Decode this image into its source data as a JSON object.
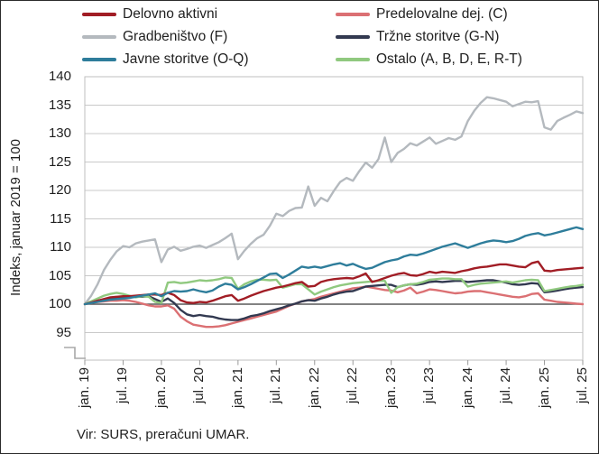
{
  "figure": {
    "source_note": "Vir: SURS, preračuni UMAR."
  },
  "chart_data": {
    "type": "line",
    "title": "",
    "ylabel": "Indeks, januar 2019 = 100",
    "ylim": [
      90,
      140
    ],
    "y_ticks": [
      140,
      135,
      130,
      125,
      120,
      115,
      110,
      105,
      100,
      95
    ],
    "baseline": 100,
    "grid": true,
    "has_y_axis_break": true,
    "legend_position": "top",
    "x_unit": "month",
    "x_range": "jan. 19 – jul. 25, monthly (79 points)",
    "x_tick_labels": [
      "jan. 19",
      "jul. 19",
      "jan. 20",
      "jul. 20",
      "jan. 21",
      "jul. 21",
      "jan. 22",
      "jul. 22",
      "jan. 23",
      "jul. 23",
      "jan. 24",
      "jul. 24",
      "jan. 25",
      "jul. 25"
    ],
    "series": [
      {
        "id": "delovno-aktivni",
        "name": "Delovno aktivni",
        "color": "#A11D25",
        "values": [
          100,
          100.3,
          100.6,
          100.9,
          101.2,
          101.3,
          101.4,
          101.4,
          101.5,
          101.6,
          101.7,
          101.7,
          101.6,
          102.0,
          101.6,
          100.7,
          100.3,
          100.2,
          100.4,
          100.3,
          100.6,
          101.0,
          101.4,
          101.6,
          100.6,
          101.0,
          101.5,
          101.9,
          102.3,
          102.6,
          102.9,
          103.1,
          103.4,
          103.7,
          103.9,
          103.1,
          103.2,
          103.9,
          104.2,
          104.4,
          104.5,
          104.6,
          104.5,
          104.9,
          105.4,
          103.9,
          104.2,
          104.6,
          105.0,
          105.3,
          105.5,
          105.1,
          105.0,
          105.3,
          105.7,
          105.5,
          105.7,
          105.6,
          105.5,
          105.8,
          106.0,
          106.3,
          106.5,
          106.6,
          106.8,
          107.0,
          107.0,
          106.8,
          106.6,
          106.5,
          107.2,
          107.5,
          105.9,
          105.8,
          106.0,
          106.1,
          106.2,
          106.3,
          106.4
        ]
      },
      {
        "id": "predelovalne-dej-c",
        "name": "Predelovalne dej. (C)",
        "color": "#DB7073",
        "values": [
          100,
          100.2,
          100.4,
          100.5,
          100.6,
          100.6,
          100.7,
          100.6,
          100.4,
          100.1,
          99.8,
          99.6,
          99.6,
          99.8,
          99.2,
          97.8,
          97.0,
          96.4,
          96.2,
          96.0,
          96.0,
          96.1,
          96.3,
          96.6,
          96.9,
          97.2,
          97.5,
          97.8,
          98.1,
          98.4,
          98.7,
          99.2,
          99.7,
          100.1,
          100.5,
          100.7,
          100.9,
          101.3,
          101.6,
          101.9,
          102.2,
          102.5,
          102.8,
          102.9,
          103.1,
          102.9,
          102.7,
          102.5,
          102.4,
          102.1,
          102.4,
          102.9,
          101.9,
          102.2,
          102.6,
          102.5,
          102.3,
          102.1,
          101.9,
          102.0,
          102.2,
          102.3,
          102.3,
          102.1,
          101.9,
          101.7,
          101.5,
          101.3,
          101.2,
          101.4,
          101.8,
          101.9,
          100.8,
          100.6,
          100.4,
          100.3,
          100.2,
          100.1,
          100.0
        ]
      },
      {
        "id": "gradbenistvo-f",
        "name": "Gradbeništvo (F)",
        "color": "#B4B9BE",
        "values": [
          100,
          101.5,
          103.5,
          106.0,
          107.8,
          109.3,
          110.2,
          110.0,
          110.7,
          111.0,
          111.2,
          111.4,
          107.4,
          109.6,
          110.1,
          109.4,
          109.7,
          110.1,
          110.3,
          109.9,
          110.4,
          110.9,
          111.6,
          112.4,
          107.9,
          109.4,
          110.6,
          111.6,
          112.2,
          113.8,
          115.9,
          115.5,
          116.4,
          116.9,
          117.0,
          120.7,
          117.3,
          118.7,
          118.1,
          119.9,
          121.5,
          122.2,
          121.7,
          123.4,
          124.9,
          124.0,
          125.5,
          129.3,
          125.0,
          126.6,
          127.3,
          128.3,
          127.9,
          128.6,
          129.3,
          128.2,
          128.7,
          129.2,
          128.9,
          129.5,
          132.2,
          134.0,
          135.4,
          136.4,
          136.2,
          135.9,
          135.6,
          134.8,
          135.2,
          135.6,
          135.5,
          135.7,
          131.1,
          130.7,
          132.2,
          132.8,
          133.3,
          133.9,
          133.6
        ]
      },
      {
        "id": "trzne-storitve-g-n",
        "name": "Tržne storitve (G-N)",
        "color": "#323950",
        "values": [
          100,
          100.3,
          100.6,
          100.8,
          101.0,
          101.1,
          101.2,
          101.2,
          101.3,
          101.3,
          101.4,
          100.9,
          100.4,
          101.0,
          100.2,
          99.0,
          98.2,
          97.9,
          98.1,
          97.9,
          97.8,
          97.5,
          97.3,
          97.2,
          97.2,
          97.5,
          97.9,
          98.1,
          98.4,
          98.8,
          99.1,
          99.4,
          99.8,
          100.1,
          100.5,
          100.7,
          100.6,
          101.0,
          101.3,
          101.7,
          102.0,
          102.2,
          102.3,
          102.7,
          103.1,
          103.2,
          103.3,
          103.4,
          103.4,
          103.0,
          103.3,
          103.5,
          103.4,
          103.6,
          103.9,
          104.0,
          103.9,
          104.0,
          104.1,
          104.1,
          103.9,
          104.0,
          104.1,
          104.2,
          104.2,
          104.0,
          103.8,
          103.5,
          103.4,
          103.5,
          103.7,
          103.6,
          102.1,
          102.2,
          102.4,
          102.6,
          102.8,
          102.9,
          103.0
        ]
      },
      {
        "id": "javne-storitve-o-q",
        "name": "Javne storitve (O-Q)",
        "color": "#2E7D9B",
        "values": [
          100,
          100.2,
          100.4,
          100.6,
          100.8,
          100.9,
          101.0,
          101.1,
          101.3,
          101.5,
          101.7,
          101.9,
          101.4,
          102.0,
          102.3,
          102.2,
          102.3,
          102.6,
          102.3,
          102.1,
          102.4,
          103.1,
          103.6,
          103.4,
          102.6,
          103.0,
          103.5,
          104.1,
          104.7,
          105.3,
          105.4,
          104.6,
          105.2,
          105.9,
          106.6,
          106.4,
          106.6,
          106.4,
          106.7,
          107.0,
          107.2,
          106.8,
          107.1,
          106.6,
          106.2,
          106.4,
          106.9,
          107.4,
          107.7,
          107.9,
          108.4,
          108.7,
          108.6,
          108.9,
          109.3,
          109.7,
          110.1,
          110.4,
          110.7,
          110.3,
          109.9,
          110.3,
          110.7,
          111.0,
          111.2,
          111.1,
          110.9,
          111.1,
          111.5,
          112.0,
          112.3,
          112.5,
          112.1,
          112.3,
          112.6,
          112.9,
          113.2,
          113.5,
          113.2
        ]
      },
      {
        "id": "ostalo",
        "name": "Ostalo (A, B, D, E, R-T)",
        "color": "#90C97F",
        "values": [
          100,
          100.5,
          101.0,
          101.5,
          101.8,
          102.0,
          101.8,
          101.5,
          101.2,
          101.4,
          101.3,
          100.4,
          100.2,
          103.8,
          103.9,
          103.7,
          103.8,
          104.0,
          104.2,
          104.1,
          104.2,
          104.4,
          104.7,
          104.6,
          102.7,
          103.5,
          104.0,
          104.3,
          104.3,
          104.2,
          104.3,
          102.9,
          103.2,
          103.5,
          103.5,
          102.6,
          101.7,
          102.2,
          102.6,
          103.0,
          103.3,
          103.5,
          103.7,
          103.8,
          103.9,
          104.0,
          104.1,
          104.1,
          102.0,
          103.0,
          103.3,
          103.5,
          103.6,
          103.9,
          104.3,
          104.4,
          104.5,
          104.5,
          104.4,
          104.4,
          103.1,
          103.4,
          103.6,
          103.7,
          103.8,
          103.9,
          104.0,
          103.8,
          104.0,
          104.2,
          104.3,
          104.2,
          102.3,
          102.5,
          102.7,
          102.9,
          103.1,
          103.2,
          103.4
        ]
      }
    ]
  }
}
